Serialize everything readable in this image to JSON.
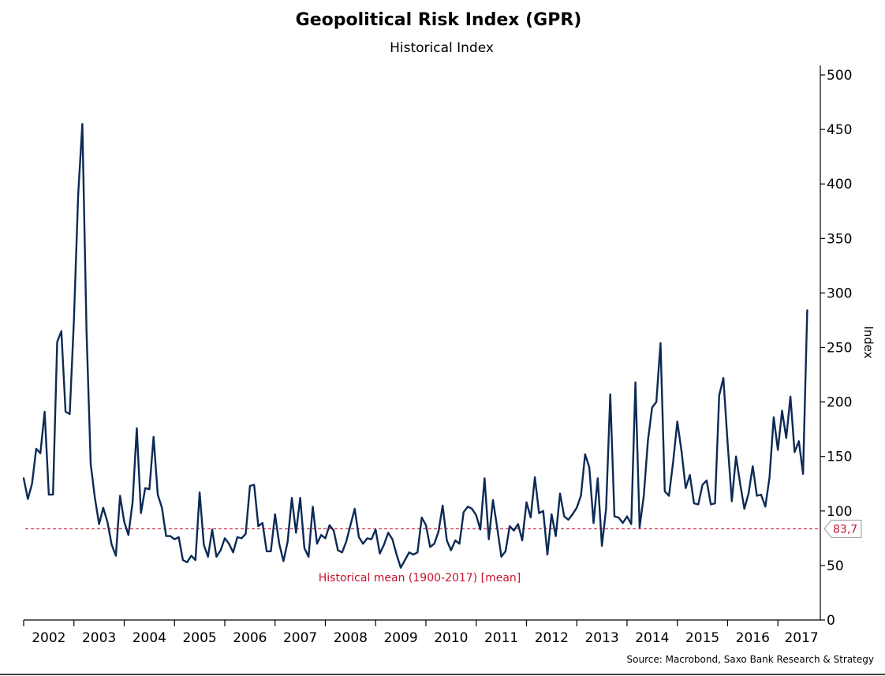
{
  "chart_data": {
    "type": "line",
    "title": "Geopolitical Risk Index (GPR)",
    "subtitle": "Historical Index",
    "ylabel": "Index",
    "xlabel": "",
    "ylim": [
      0,
      500
    ],
    "y_ticks": [
      "0",
      "50",
      "100",
      "150",
      "200",
      "250",
      "300",
      "350",
      "400",
      "450",
      "500"
    ],
    "x_tick_labels": [
      "2002",
      "2003",
      "2004",
      "2005",
      "2006",
      "2007",
      "2008",
      "2009",
      "2010",
      "2011",
      "2012",
      "2013",
      "2014",
      "2015",
      "2016",
      "2017"
    ],
    "x_range": [
      2002.0,
      2017.75
    ],
    "y_axis_position": "right",
    "grid": false,
    "series": [
      {
        "color": "#0b2a55",
        "x_start": "2002-01",
        "frequency": "monthly",
        "values": [
          130,
          111,
          125,
          157,
          153,
          191,
          115,
          115,
          255,
          265,
          191,
          189,
          275,
          390,
          455,
          265,
          143,
          112,
          88,
          103,
          90,
          69,
          59,
          114,
          90,
          78,
          108,
          176,
          98,
          121,
          120,
          168,
          115,
          103,
          77,
          77,
          74,
          76,
          55,
          53,
          59,
          55,
          117,
          69,
          58,
          83,
          58,
          64,
          75,
          70,
          62,
          76,
          75,
          79,
          123,
          124,
          86,
          89,
          63,
          63,
          97,
          70,
          54,
          72,
          112,
          80,
          112,
          66,
          58,
          104,
          70,
          78,
          75,
          87,
          82,
          64,
          62,
          72,
          87,
          102,
          76,
          70,
          75,
          74,
          83,
          61,
          69,
          80,
          74,
          60,
          48,
          55,
          62,
          60,
          62,
          94,
          87,
          67,
          70,
          81,
          105,
          73,
          64,
          73,
          70,
          99,
          104,
          102,
          96,
          83,
          130,
          74,
          110,
          85,
          58,
          63,
          86,
          82,
          88,
          73,
          108,
          94,
          131,
          98,
          100,
          60,
          97,
          77,
          116,
          95,
          92,
          97,
          103,
          114,
          152,
          140,
          89,
          130,
          68,
          102,
          207,
          95,
          94,
          89,
          95,
          88,
          218,
          85,
          114,
          165,
          195,
          200,
          254,
          118,
          114,
          145,
          182,
          155,
          121,
          133,
          107,
          106,
          124,
          128,
          106,
          107,
          206,
          222,
          163,
          109,
          150,
          125,
          102,
          116,
          141,
          114,
          115,
          104,
          131,
          186,
          156,
          192,
          167,
          205,
          154,
          164,
          134,
          284
        ]
      }
    ],
    "reference_line": {
      "value": 83.7,
      "value_label": "83,7",
      "label": "Historical mean (1900-2017) [mean]",
      "color": "#c8102e",
      "style": "dashed"
    },
    "source": "Source: Macrobond, Saxo Bank Research & Strategy"
  }
}
